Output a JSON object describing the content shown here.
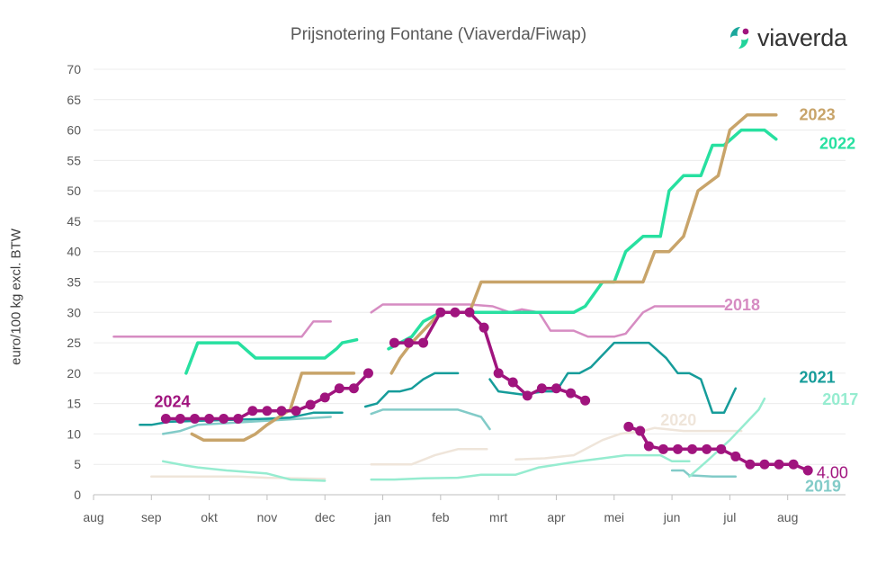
{
  "chart_data": {
    "type": "line",
    "title": "Prijsnotering Fontane (Viaverda/Fiwap)",
    "ylabel": "euro/100 kg excl. BTW",
    "xlabel": "",
    "ylim": [
      0,
      70
    ],
    "y_ticks": [
      0,
      5,
      10,
      15,
      20,
      25,
      30,
      35,
      40,
      45,
      50,
      55,
      60,
      65,
      70
    ],
    "x_ticks": [
      "aug",
      "sep",
      "okt",
      "nov",
      "dec",
      "jan",
      "feb",
      "mrt",
      "apr",
      "mei",
      "jun",
      "jul",
      "aug"
    ],
    "x_unit": "months since 1 aug",
    "grid": "horizontal",
    "series": [
      {
        "name": "2018",
        "color": "#d68cc2",
        "width": 2.5,
        "markers": false,
        "label_y": 31,
        "segments": [
          [
            [
              0.35,
              26
            ],
            [
              3.6,
              26
            ],
            [
              3.8,
              28.5
            ],
            [
              4.1,
              28.5
            ]
          ],
          [
            [
              4.8,
              30
            ],
            [
              5.0,
              31.3
            ],
            [
              6.5,
              31.3
            ],
            [
              6.9,
              31
            ],
            [
              7.2,
              30
            ],
            [
              7.4,
              30.5
            ],
            [
              7.7,
              30
            ],
            [
              7.9,
              27
            ],
            [
              8.3,
              27
            ],
            [
              8.55,
              26
            ],
            [
              9.0,
              26
            ],
            [
              9.2,
              26.5
            ],
            [
              9.5,
              30
            ],
            [
              9.7,
              31
            ],
            [
              10.9,
              31
            ]
          ]
        ]
      },
      {
        "name": "2019",
        "color": "#82cbc8",
        "width": 2.5,
        "markers": false,
        "label_y": 1.5,
        "segments": [
          [
            [
              1.2,
              10
            ],
            [
              1.5,
              10.5
            ],
            [
              1.8,
              11.5
            ],
            [
              4.1,
              12.8
            ]
          ],
          [
            [
              4.8,
              13.3
            ],
            [
              5.0,
              14
            ],
            [
              6.3,
              14
            ],
            [
              6.7,
              12.8
            ],
            [
              6.85,
              10.8
            ]
          ],
          [
            [
              10.0,
              4
            ],
            [
              10.2,
              4
            ],
            [
              10.3,
              3.2
            ],
            [
              10.7,
              3
            ],
            [
              11.1,
              3
            ]
          ]
        ]
      },
      {
        "name": "2020",
        "color": "#efe5da",
        "width": 2.5,
        "markers": false,
        "label_y": 12.5,
        "segments": [
          [
            [
              1.0,
              3
            ],
            [
              2.5,
              3
            ],
            [
              3.0,
              2.8
            ],
            [
              4.0,
              2.6
            ]
          ],
          [
            [
              4.8,
              5
            ],
            [
              5.5,
              5
            ],
            [
              5.9,
              6.5
            ],
            [
              6.3,
              7.5
            ],
            [
              6.8,
              7.5
            ]
          ],
          [
            [
              7.3,
              5.8
            ],
            [
              7.8,
              6
            ],
            [
              8.3,
              6.5
            ],
            [
              8.8,
              9
            ],
            [
              9.1,
              10
            ],
            [
              9.5,
              10.5
            ],
            [
              9.7,
              11
            ],
            [
              10.2,
              10.5
            ],
            [
              11.1,
              10.5
            ],
            [
              11.2,
              10.5
            ]
          ]
        ]
      },
      {
        "name": "2017",
        "color": "#96ecd0",
        "width": 2.5,
        "markers": false,
        "label_y": 15.8,
        "segments": [
          [
            [
              1.2,
              5.5
            ],
            [
              1.6,
              4.8
            ],
            [
              1.8,
              4.5
            ],
            [
              2.3,
              4
            ],
            [
              3.0,
              3.5
            ],
            [
              3.4,
              2.5
            ],
            [
              4.0,
              2.3
            ]
          ],
          [
            [
              4.8,
              2.5
            ],
            [
              5.2,
              2.5
            ],
            [
              5.7,
              2.7
            ],
            [
              6.3,
              2.8
            ],
            [
              6.7,
              3.3
            ],
            [
              7.3,
              3.3
            ],
            [
              7.7,
              4.5
            ],
            [
              8.4,
              5.5
            ],
            [
              8.8,
              6
            ],
            [
              9.2,
              6.5
            ],
            [
              9.8,
              6.5
            ],
            [
              10.0,
              5.5
            ],
            [
              10.3,
              5.5
            ]
          ],
          [
            [
              10.3,
              3
            ],
            [
              10.6,
              5.5
            ],
            [
              11.0,
              9
            ],
            [
              11.5,
              14
            ],
            [
              11.6,
              15.8
            ]
          ]
        ]
      },
      {
        "name": "2021",
        "color": "#169c9a",
        "width": 2.5,
        "markers": false,
        "label_y": 17.8,
        "segments": [
          [
            [
              0.8,
              11.5
            ],
            [
              1.0,
              11.5
            ],
            [
              1.3,
              12
            ],
            [
              3.0,
              12.5
            ],
            [
              3.4,
              12.7
            ],
            [
              3.8,
              13.5
            ],
            [
              4.3,
              13.5
            ]
          ],
          [
            [
              4.7,
              14.5
            ],
            [
              4.9,
              15
            ],
            [
              5.1,
              17
            ],
            [
              5.3,
              17
            ],
            [
              5.5,
              17.5
            ],
            [
              5.7,
              19
            ],
            [
              5.9,
              20
            ],
            [
              6.3,
              20
            ]
          ],
          [
            [
              6.85,
              19
            ],
            [
              7.0,
              17
            ],
            [
              7.4,
              16.5
            ],
            [
              7.8,
              17
            ],
            [
              8.0,
              17
            ],
            [
              8.2,
              20
            ],
            [
              8.4,
              20
            ],
            [
              8.6,
              21
            ],
            [
              8.8,
              23
            ],
            [
              9.0,
              25
            ],
            [
              9.6,
              25
            ],
            [
              9.9,
              22.5
            ],
            [
              10.1,
              20
            ],
            [
              10.3,
              20
            ],
            [
              10.5,
              19
            ],
            [
              10.7,
              13.5
            ],
            [
              10.9,
              13.5
            ],
            [
              11.1,
              17.5
            ]
          ]
        ]
      },
      {
        "name": "2022",
        "color": "#27e0a0",
        "width": 3.5,
        "markers": false,
        "label_y": 57.5,
        "segments": [
          [
            [
              1.6,
              20
            ],
            [
              1.8,
              25
            ],
            [
              2.5,
              25
            ],
            [
              2.8,
              22.5
            ],
            [
              4.0,
              22.5
            ],
            [
              4.2,
              24
            ],
            [
              4.3,
              25
            ],
            [
              4.55,
              25.5
            ]
          ],
          [
            [
              5.1,
              24
            ],
            [
              5.5,
              26
            ],
            [
              5.7,
              28.5
            ],
            [
              6.0,
              30
            ],
            [
              7.0,
              30
            ],
            [
              8.3,
              30
            ],
            [
              8.5,
              31
            ],
            [
              8.8,
              35
            ],
            [
              9.0,
              35
            ],
            [
              9.2,
              40
            ],
            [
              9.5,
              42.5
            ],
            [
              9.8,
              42.5
            ],
            [
              9.95,
              50
            ],
            [
              10.2,
              52.5
            ],
            [
              10.5,
              52.5
            ],
            [
              10.7,
              57.5
            ],
            [
              10.9,
              57.5
            ],
            [
              11.2,
              60
            ],
            [
              11.6,
              60
            ],
            [
              11.8,
              58.5
            ]
          ]
        ]
      },
      {
        "name": "2023",
        "color": "#c8a46a",
        "width": 3.5,
        "markers": false,
        "label_y": 62.3,
        "segments": [
          [
            [
              1.7,
              10
            ],
            [
              1.9,
              9
            ],
            [
              2.6,
              9
            ],
            [
              2.8,
              10
            ],
            [
              3.0,
              11.5
            ],
            [
              3.4,
              14
            ],
            [
              3.6,
              20
            ],
            [
              4.5,
              20
            ]
          ],
          [
            [
              5.15,
              20
            ],
            [
              5.3,
              22.5
            ],
            [
              5.5,
              25
            ],
            [
              5.8,
              28
            ],
            [
              6.0,
              30
            ],
            [
              6.5,
              30
            ],
            [
              6.7,
              35
            ],
            [
              9.5,
              35
            ],
            [
              9.7,
              40
            ],
            [
              9.95,
              40
            ],
            [
              10.2,
              42.5
            ],
            [
              10.45,
              50
            ],
            [
              10.8,
              52.5
            ],
            [
              11.0,
              60
            ],
            [
              11.3,
              62.5
            ],
            [
              11.8,
              62.5
            ]
          ]
        ]
      },
      {
        "name": "2024",
        "color": "#a0147e",
        "width": 3.5,
        "markers": true,
        "label_y": 4,
        "segments": [
          [
            [
              1.25,
              12.5
            ],
            [
              1.5,
              12.5
            ],
            [
              1.75,
              12.5
            ],
            [
              2.0,
              12.5
            ],
            [
              2.25,
              12.5
            ],
            [
              2.5,
              12.5
            ],
            [
              2.75,
              13.8
            ],
            [
              3.0,
              13.8
            ],
            [
              3.25,
              13.8
            ],
            [
              3.5,
              13.8
            ],
            [
              3.75,
              14.8
            ],
            [
              4.0,
              16
            ],
            [
              4.25,
              17.5
            ],
            [
              4.5,
              17.5
            ],
            [
              4.75,
              20
            ]
          ],
          [
            [
              5.2,
              25
            ],
            [
              5.45,
              25
            ],
            [
              5.7,
              25
            ],
            [
              6.0,
              30
            ],
            [
              6.25,
              30
            ],
            [
              6.5,
              30
            ],
            [
              6.75,
              27.5
            ],
            [
              7.0,
              20
            ],
            [
              7.25,
              18.5
            ],
            [
              7.5,
              16.3
            ],
            [
              7.75,
              17.5
            ],
            [
              8.0,
              17.5
            ],
            [
              8.25,
              16.7
            ],
            [
              8.5,
              15.5
            ]
          ],
          [
            [
              9.25,
              11.2
            ],
            [
              9.45,
              10.5
            ],
            [
              9.6,
              8
            ],
            [
              9.85,
              7.5
            ],
            [
              10.1,
              7.5
            ],
            [
              10.35,
              7.5
            ],
            [
              10.6,
              7.5
            ],
            [
              10.85,
              7.5
            ],
            [
              11.1,
              6.3
            ],
            [
              11.35,
              5
            ],
            [
              11.6,
              5
            ],
            [
              11.85,
              5
            ],
            [
              12.1,
              5
            ],
            [
              12.35,
              4
            ]
          ]
        ]
      }
    ],
    "annotations": [
      {
        "text": "2024",
        "color": "#a0147e",
        "x": 1.05,
        "y": 15.3
      },
      {
        "text": "2023",
        "color": "#c8a46a",
        "x": 12.2,
        "y": 62.5
      },
      {
        "text": "2022",
        "color": "#27e0a0",
        "x": 12.55,
        "y": 57.8
      },
      {
        "text": "2021",
        "color": "#169c9a",
        "x": 12.2,
        "y": 19.3
      },
      {
        "text": "2020",
        "color": "#efe5da",
        "x": 9.8,
        "y": 12.3
      },
      {
        "text": "2017",
        "color": "#96ecd0",
        "x": 12.6,
        "y": 15.7
      },
      {
        "text": "2018",
        "color": "#d68cc2",
        "x": 10.9,
        "y": 31.2
      },
      {
        "text": "2019",
        "color": "#82cbc8",
        "x": 12.3,
        "y": 1.4
      },
      {
        "text": "4.00",
        "color": "#a0147e",
        "x": 12.5,
        "y": 3.6
      }
    ]
  },
  "brand": {
    "name": "viaverda",
    "logo_colors": [
      "#1aa79c",
      "#22d39a",
      "#a0147e"
    ]
  }
}
